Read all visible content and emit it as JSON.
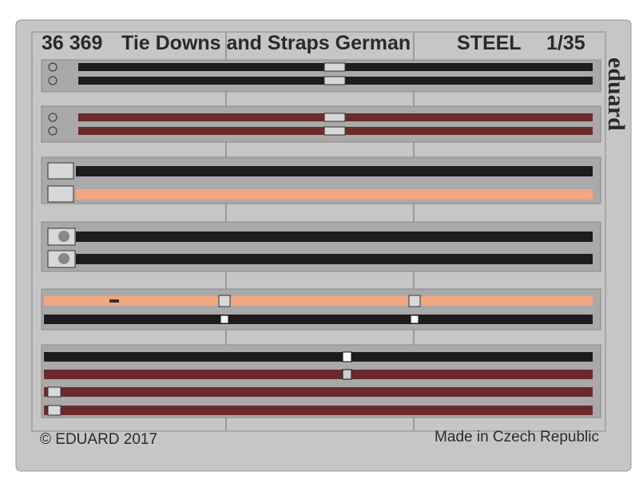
{
  "header": {
    "code": "36 369",
    "title": "Tie Downs and Straps German",
    "material": "STEEL",
    "scale": "1/35"
  },
  "brand": "eduard",
  "footer": {
    "copyright": "© EDUARD 2017",
    "origin": "Made in Czech Republic"
  }
}
